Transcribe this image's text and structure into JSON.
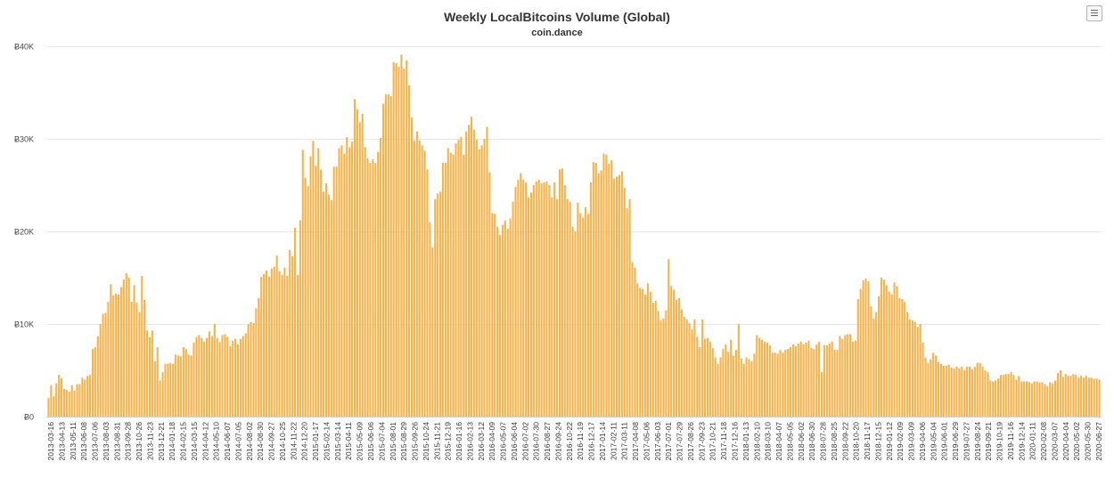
{
  "chart_data": {
    "type": "bar",
    "title": "Weekly LocalBitcoins Volume (Global)",
    "subtitle": "coin.dance",
    "xlabel": "",
    "ylabel": "",
    "ylim": [
      0,
      40000
    ],
    "grid": true,
    "legend": "none",
    "bar_color": "#f7b34a",
    "y_ticks": [
      {
        "value": 0,
        "label": "Ƀ0"
      },
      {
        "value": 10000,
        "label": "Ƀ10K"
      },
      {
        "value": 20000,
        "label": "Ƀ20K"
      },
      {
        "value": 30000,
        "label": "Ƀ30K"
      },
      {
        "value": 40000,
        "label": "Ƀ40K"
      }
    ],
    "x_tick_labels": [
      "2013-03-16",
      "2013-04-13",
      "2013-05-11",
      "2013-06-08",
      "2013-07-06",
      "2013-08-03",
      "2013-08-31",
      "2013-09-28",
      "2013-10-26",
      "2013-11-23",
      "2013-12-21",
      "2014-01-18",
      "2014-02-15",
      "2014-03-15",
      "2014-04-12",
      "2014-05-10",
      "2014-06-07",
      "2014-07-05",
      "2014-08-02",
      "2014-08-30",
      "2014-09-27",
      "2014-10-25",
      "2014-11-22",
      "2014-12-20",
      "2015-01-17",
      "2015-02-14",
      "2015-03-14",
      "2015-04-11",
      "2015-05-09",
      "2015-06-06",
      "2015-07-04",
      "2015-08-01",
      "2015-08-29",
      "2015-09-26",
      "2015-10-24",
      "2015-11-21",
      "2015-12-19",
      "2016-01-16",
      "2016-02-13",
      "2016-03-12",
      "2016-04-09",
      "2016-05-07",
      "2016-06-04",
      "2016-07-02",
      "2016-07-30",
      "2016-08-27",
      "2016-09-24",
      "2016-10-22",
      "2016-11-19",
      "2016-12-17",
      "2017-01-14",
      "2017-02-11",
      "2017-03-11",
      "2017-04-08",
      "2017-05-06",
      "2017-06-03",
      "2017-07-01",
      "2017-07-29",
      "2017-08-26",
      "2017-09-23",
      "2017-10-21",
      "2017-11-18",
      "2017-12-16",
      "2018-01-13",
      "2018-02-10",
      "2018-03-10",
      "2018-04-07",
      "2018-05-05",
      "2018-06-02",
      "2018-06-30",
      "2018-07-28",
      "2018-08-25",
      "2018-09-22",
      "2018-10-20",
      "2018-11-17",
      "2018-12-15",
      "2019-01-12",
      "2019-02-09",
      "2019-03-09",
      "2019-04-06",
      "2019-05-04",
      "2019-06-01",
      "2019-06-29",
      "2019-07-27",
      "2019-08-24",
      "2019-09-21",
      "2019-10-19",
      "2019-11-16",
      "2019-12-14",
      "2020-01-11",
      "2020-02-08",
      "2020-03-07",
      "2020-04-04",
      "2020-05-02",
      "2020-05-30",
      "2020-06-27"
    ],
    "values": [
      2000,
      3400,
      2200,
      3600,
      4500,
      4100,
      3000,
      2900,
      2700,
      3400,
      2800,
      3500,
      3500,
      4200,
      4000,
      4400,
      4500,
      7300,
      7500,
      8700,
      10000,
      11100,
      11200,
      12400,
      14300,
      13100,
      13300,
      13200,
      14000,
      14800,
      15500,
      15000,
      12400,
      14200,
      12300,
      11300,
      15200,
      12600,
      9300,
      8600,
      9300,
      6000,
      7500,
      3900,
      4800,
      5700,
      5700,
      5800,
      5700,
      6700,
      6600,
      6500,
      7500,
      7300,
      6700,
      6600,
      8000,
      8600,
      8800,
      8500,
      8100,
      8500,
      9200,
      8700,
      10000,
      8500,
      8000,
      8800,
      8900,
      8600,
      7600,
      8200,
      8400,
      7800,
      8400,
      8700,
      9000,
      10000,
      10200,
      10100,
      11700,
      12800,
      15100,
      15400,
      15800,
      15100,
      16000,
      16200,
      17400,
      15700,
      15300,
      16100,
      15200,
      18000,
      17300,
      20400,
      15300,
      21200,
      28800,
      25800,
      24900,
      28100,
      29800,
      27100,
      29000,
      26700,
      24300,
      25200,
      24000,
      23400,
      27000,
      27000,
      29000,
      29300,
      28400,
      30200,
      29100,
      29700,
      34300,
      33200,
      31800,
      32700,
      29100,
      27900,
      27400,
      27800,
      27400,
      28600,
      30100,
      33800,
      34800,
      34800,
      34600,
      38300,
      38200,
      37800,
      39100,
      37600,
      38500,
      35800,
      32300,
      29800,
      30800,
      29800,
      29300,
      28700,
      26700,
      21000,
      18300,
      23500,
      24100,
      24300,
      27400,
      27400,
      29000,
      28500,
      28300,
      29500,
      29900,
      30200,
      28300,
      30800,
      31500,
      32400,
      31000,
      29900,
      28900,
      29300,
      30000,
      31300,
      26400,
      22000,
      21900,
      20500,
      19600,
      20700,
      21200,
      20300,
      21400,
      23200,
      24800,
      25600,
      26300,
      25600,
      25300,
      23700,
      24200,
      25000,
      25400,
      25600,
      25200,
      25300,
      25400,
      25000,
      23700,
      25300,
      23500,
      26700,
      26800,
      25000,
      23500,
      23200,
      20500,
      20000,
      23100,
      22000,
      21500,
      22600,
      21900,
      25300,
      27500,
      27400,
      26300,
      26600,
      28400,
      28300,
      27300,
      27700,
      25700,
      25900,
      26100,
      26500,
      24700,
      22500,
      23500,
      16700,
      16100,
      14400,
      13900,
      13800,
      13200,
      14400,
      13500,
      12300,
      12500,
      11400,
      10400,
      10600,
      11500,
      17000,
      14100,
      13700,
      12600,
      12800,
      11600,
      10800,
      10500,
      10100,
      9400,
      10500,
      8600,
      7500,
      10500,
      8400,
      8500,
      8100,
      7400,
      6400,
      5700,
      6400,
      7300,
      7800,
      7000,
      8300,
      6600,
      7200,
      10000,
      6300,
      5700,
      6400,
      6200,
      6000,
      6800,
      8800,
      8500,
      8300,
      8100,
      8000,
      7700,
      6900,
      6900,
      6800,
      7200,
      6900,
      7200,
      7300,
      7500,
      7800,
      7600,
      7900,
      8100,
      7800,
      8000,
      8200,
      7400,
      7300,
      7800,
      8100,
      4800,
      7700,
      7700,
      7900,
      8100,
      7200,
      7200,
      8700,
      8400,
      8800,
      8900,
      8900,
      8100,
      8200,
      12700,
      13800,
      14700,
      14900,
      14600,
      11900,
      10600,
      11300,
      13000,
      15000,
      14800,
      14200,
      13500,
      13200,
      14500,
      14100,
      12800,
      12700,
      12400,
      11300,
      10500,
      10400,
      10200,
      9700,
      10000,
      8000,
      6400,
      5800,
      6200,
      6900,
      6600,
      5900,
      5700,
      5500,
      5500,
      5600,
      5300,
      5200,
      5400,
      5200,
      5400,
      5000,
      5400,
      5400,
      5100,
      5400,
      5800,
      5800,
      5400,
      5000,
      4800,
      3900,
      3800,
      3900,
      4100,
      4500,
      4500,
      4600,
      4600,
      4800,
      4500,
      4000,
      4400,
      3800,
      3800,
      3800,
      3700,
      3600,
      3800,
      3800,
      3700,
      3700,
      3500,
      3300,
      3700,
      3600,
      3900,
      4700,
      5000,
      4300,
      4600,
      4400,
      4400,
      4600,
      4500,
      4200,
      4400,
      4200,
      4400,
      4200,
      4200,
      4100,
      4100,
      4000
    ]
  },
  "menu_icon": "hamburger-menu-icon"
}
